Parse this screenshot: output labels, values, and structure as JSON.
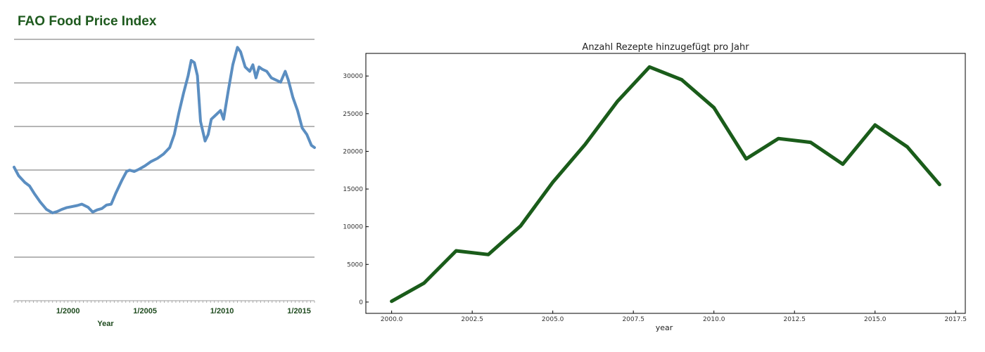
{
  "chart_data": [
    {
      "type": "line",
      "title": "FAO Food Price Index",
      "xlabel": "Year",
      "ylabel": "",
      "tick_labels": [
        "1/2000",
        "1/2005",
        "1/2010",
        "1/2015"
      ],
      "grid": "horizontal",
      "y_gridlines": 7,
      "line_color": "#5b8ec1",
      "series": [
        {
          "x": [
            1996.5,
            1996.8,
            1997.2,
            1997.5,
            1997.8,
            1998.2,
            1998.6,
            1999.0,
            1999.3,
            1999.6,
            1999.9,
            2000.2,
            2000.6,
            2000.9,
            2001.3,
            2001.6,
            2001.9,
            2002.2,
            2002.5,
            2002.8,
            2003.1,
            2003.5,
            2003.8,
            2004.0,
            2004.3,
            2004.6,
            2005.0,
            2005.4,
            2005.8,
            2006.2,
            2006.6,
            2006.9,
            2007.2,
            2007.5,
            2007.8,
            2008.0,
            2008.2,
            2008.4,
            2008.6,
            2008.9,
            2009.1,
            2009.3,
            2009.6,
            2009.9,
            2010.1,
            2010.4,
            2010.7,
            2011.0,
            2011.2,
            2011.5,
            2011.8,
            2012.0,
            2012.2,
            2012.4,
            2012.6,
            2012.9,
            2013.2,
            2013.5,
            2013.8,
            2014.1,
            2014.3,
            2014.6,
            2014.9,
            2015.2,
            2015.5,
            2015.8,
            2016.0
          ],
          "y": [
            -0.05,
            0.15,
            0.3,
            0.38,
            0.55,
            0.75,
            0.92,
            1.0,
            0.97,
            0.92,
            0.88,
            0.86,
            0.83,
            0.8,
            0.87,
            0.98,
            0.93,
            0.9,
            0.82,
            0.8,
            0.55,
            0.25,
            0.05,
            0.02,
            0.05,
            0.0,
            -0.08,
            -0.18,
            -0.25,
            -0.35,
            -0.5,
            -0.8,
            -1.3,
            -1.75,
            -2.15,
            -2.5,
            -2.45,
            -2.15,
            -1.1,
            -0.65,
            -0.8,
            -1.15,
            -1.25,
            -1.35,
            -1.15,
            -1.8,
            -2.4,
            -2.8,
            -2.7,
            -2.35,
            -2.25,
            -2.4,
            -2.1,
            -2.35,
            -2.3,
            -2.25,
            -2.1,
            -2.05,
            -2.0,
            -2.25,
            -2.05,
            -1.65,
            -1.35,
            -0.95,
            -0.8,
            -0.55,
            -0.5
          ]
        }
      ]
    },
    {
      "type": "line",
      "title": "Anzahl Rezepte hinzugefügt pro Jahr",
      "xlabel": "year",
      "ylabel": "",
      "xlim": [
        1999.2,
        2017.8
      ],
      "ylim": [
        -1500,
        33000
      ],
      "x_ticks": [
        "2000.0",
        "2002.5",
        "2005.0",
        "2007.5",
        "2010.0",
        "2012.5",
        "2015.0",
        "2017.5"
      ],
      "y_ticks": [
        "0",
        "5000",
        "10000",
        "15000",
        "20000",
        "25000",
        "30000"
      ],
      "grid": false,
      "line_color": "#1a5c1a",
      "series": [
        {
          "x": [
            2000,
            2001,
            2002,
            2003,
            2004,
            2005,
            2006,
            2007,
            2008,
            2009,
            2010,
            2011,
            2012,
            2013,
            2014,
            2015,
            2016,
            2017
          ],
          "y": [
            100,
            2500,
            6800,
            6300,
            10100,
            15900,
            20900,
            26600,
            31200,
            29500,
            25800,
            19000,
            21700,
            21200,
            18300,
            23500,
            20600,
            15600
          ]
        }
      ]
    }
  ]
}
